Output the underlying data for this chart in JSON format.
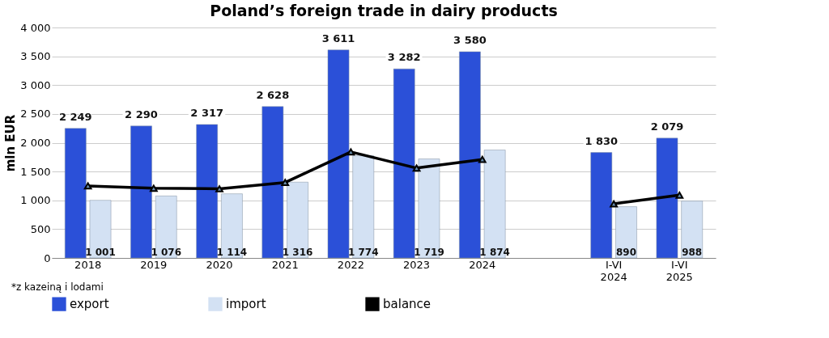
{
  "chart_data": {
    "type": "bar",
    "title": "Poland’s foreign trade in dairy products",
    "ylabel": "mln EUR",
    "categories": [
      "2018",
      "2019",
      "2020",
      "2021",
      "2022",
      "2023",
      "2024",
      null,
      "I-VI 2024",
      "I-VI 2025"
    ],
    "series": [
      {
        "name": "export",
        "color": "#2b50d8",
        "values": [
          2249,
          2290,
          2317,
          2628,
          3611,
          3282,
          3580,
          null,
          1830,
          2079
        ],
        "value_labels": [
          "2 249",
          "2 290",
          "2 317",
          "2 628",
          "3 611",
          "3 282",
          "3 580",
          null,
          "1 830",
          "2 079"
        ]
      },
      {
        "name": "import",
        "color": "#d3e1f3",
        "values": [
          1001,
          1076,
          1114,
          1316,
          1774,
          1719,
          1874,
          null,
          890,
          988
        ],
        "value_labels": [
          "1 001",
          "1 076",
          "1 114",
          "1 316",
          "1 774",
          "1 719",
          "1 874",
          null,
          "890",
          "988"
        ]
      },
      {
        "name": "balance",
        "type": "line",
        "color": "#000000",
        "marker": "triangle",
        "values": [
          1250,
          1210,
          1200,
          1310,
          1840,
          1560,
          1710,
          null,
          940,
          1090
        ]
      }
    ],
    "ylim": [
      0,
      4000
    ],
    "yticks": [
      0,
      500,
      {
        "value": 1000,
        "label": "1 000"
      },
      {
        "value": 1500,
        "label": "1 500"
      },
      {
        "value": 2000,
        "label": "2 000"
      },
      {
        "value": 2500,
        "label": "2 500"
      },
      {
        "value": 3000,
        "label": "3 000"
      },
      {
        "value": 3500,
        "label": "3 500"
      },
      {
        "value": 4000,
        "label": "4 000"
      }
    ],
    "grid": "y",
    "legend": "bottom",
    "annotations": [
      "*z kazeiną i lodami"
    ]
  }
}
